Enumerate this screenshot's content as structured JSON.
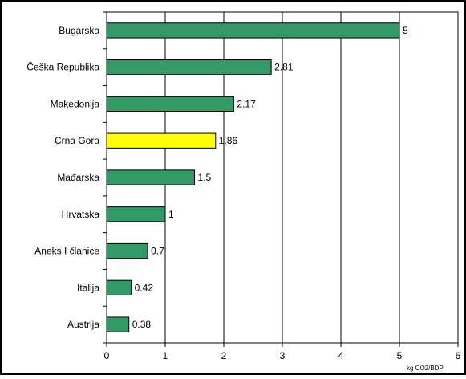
{
  "chart_data": {
    "type": "bar",
    "orientation": "horizontal",
    "categories": [
      "Bugarska",
      "Češka Republika",
      "Makedonija",
      "Crna Gora",
      "Mađarska",
      "Hrvatska",
      "Aneks I članice",
      "Italija",
      "Austrija"
    ],
    "values": [
      5,
      2.81,
      2.17,
      1.86,
      1.5,
      1,
      0.7,
      0.42,
      0.38
    ],
    "value_labels": [
      "5",
      "2.81",
      "2.17",
      "1.86",
      "1.5",
      "1",
      "0.7",
      "0.42",
      "0.38"
    ],
    "highlight_index": 3,
    "x_ticks": [
      "0",
      "1",
      "2",
      "3",
      "4",
      "5",
      "6"
    ],
    "xlim": [
      0,
      6
    ],
    "xlabel": "kg CO2/BDP",
    "grid": "vertical",
    "colors": {
      "bar": "#339966",
      "highlight": "#ffff00",
      "outline": "#000000",
      "background": "#ffffff"
    }
  }
}
